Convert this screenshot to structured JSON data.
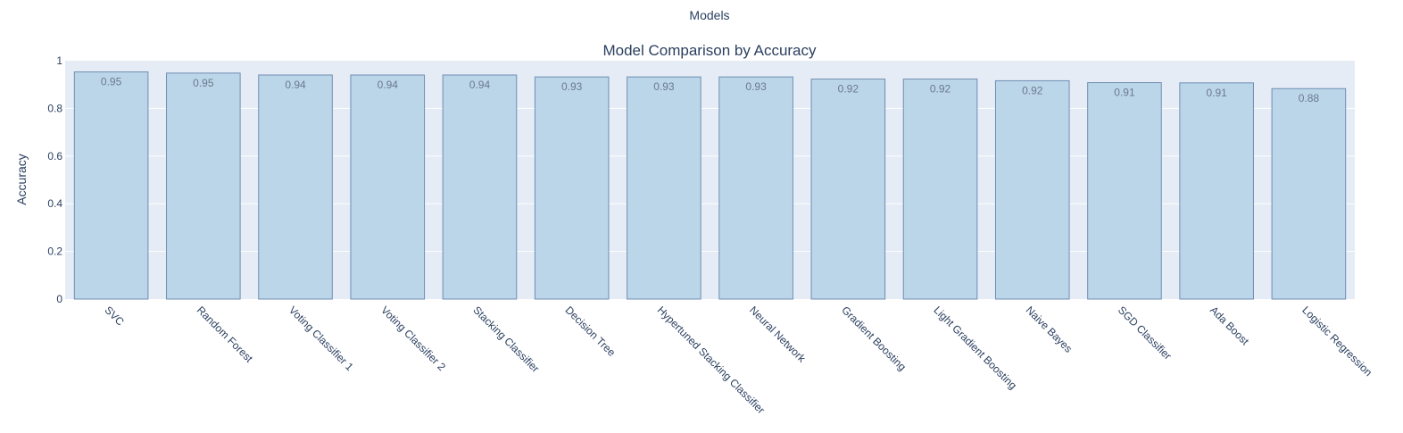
{
  "chart_data": {
    "type": "bar",
    "title": "Model Comparison by Accuracy",
    "xlabel": "Models",
    "ylabel": "Accuracy",
    "ylim": [
      0,
      1
    ],
    "yticks": [
      "0",
      "0.2",
      "0.4",
      "0.6",
      "0.8",
      "1"
    ],
    "grid": true,
    "categories": [
      "SVC",
      "Random Forest",
      "Voting Classifier 1",
      "Voting Classifier 2",
      "Stacking Classifier",
      "Decision Tree",
      "Hypertuned Stacking Classifier",
      "Neural Network",
      "Gradient Boosting",
      "Light Gradient Boosting",
      "Naive Bayes",
      "SGD Classifier",
      "Ada Boost",
      "Logistic Regression"
    ],
    "values": [
      0.953,
      0.948,
      0.94,
      0.94,
      0.94,
      0.932,
      0.932,
      0.932,
      0.923,
      0.923,
      0.916,
      0.908,
      0.907,
      0.883
    ],
    "value_labels": [
      "0.95",
      "0.95",
      "0.94",
      "0.94",
      "0.94",
      "0.93",
      "0.93",
      "0.93",
      "0.92",
      "0.92",
      "0.92",
      "0.91",
      "0.91",
      "0.88"
    ],
    "colors": {
      "bar_fill": "#bcd6e9",
      "bar_stroke": "#6f8db1",
      "plot_bg": "#e5ecf6",
      "grid": "#ffffff",
      "text": "#2a3f5f",
      "bar_label": "#6b7a8c"
    }
  }
}
